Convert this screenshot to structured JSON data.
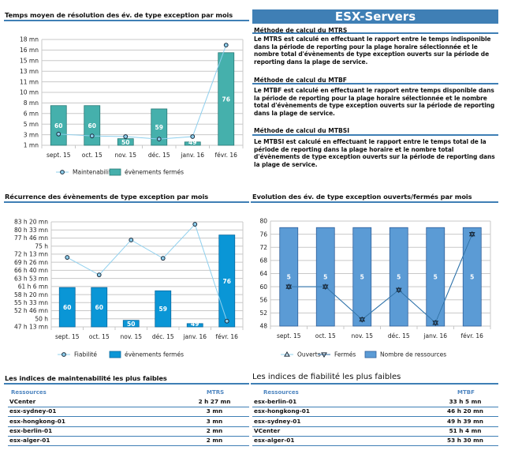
{
  "banner": "ESX-Servers",
  "methods": [
    {
      "title": "Méthode de calcul du MTRS",
      "text": "Le MTRS est calculé en effectuant le rapport entre le temps indisponible dans la période de reporting pour la plage horaire sélectionnée  et le nombre total d'évènements de type exception ouverts sur la période de reporting dans la plage de service."
    },
    {
      "title": "Méthode de calcul du MTBF",
      "text": "Le MTBF est calculé en effectuant le rapport entre temps disponible dans la période de reporting pour la plage horaire sélectionnée et le nombre total d'évènements de type exception ouverts sur la période de reporting dans la plage de service."
    },
    {
      "title": "Méthode de calcul du MTBSI",
      "text": "Le MTBSI est calculé en effectuant le rapport entre le temps total de la période de reporting dans la plage horaire et le nombre total d'évènements de type exception ouverts sur la période de reporting dans la plage de service."
    }
  ],
  "colors": {
    "accent": "#3f7fb5",
    "teal_bar": "#45b0ac",
    "blue_bar": "#0a96d6",
    "resource_bar": "#5b9bd5",
    "light_line": "#8fd0ee",
    "dark_line": "#2e6ea6"
  },
  "chart_data": [
    {
      "type": "bar",
      "title": "Temps moyen de résolution des év. de type exception par mois",
      "categories": [
        "sept. 15",
        "oct. 15",
        "nov. 15",
        "déc. 15",
        "janv. 16",
        "févr. 16"
      ],
      "ylim": [
        1,
        18
      ],
      "yunit": "mn",
      "yticks": [
        "18 mn",
        "16 mn",
        "15 mn",
        "13 mn",
        "11 mn",
        "10 mn",
        "8 mn",
        "6 mn",
        "5 mn",
        "3 mn",
        "1 mn"
      ],
      "grid": true,
      "legend_placement": "bottom",
      "bars": {
        "name": "évènements fermés",
        "values": [
          60,
          60,
          50,
          59,
          49,
          76
        ],
        "ylim": [
          48,
          80
        ],
        "color": "#45b0ac"
      },
      "lines": [
        {
          "name": "Maintenabilité",
          "values": [
            2.8,
            2.5,
            2.4,
            2.0,
            2.4,
            17.1
          ],
          "color": "#8fd0ee",
          "marker": "circle"
        }
      ]
    },
    {
      "type": "bar",
      "title": "Récurrence des évènements de type exception par mois",
      "categories": [
        "sept. 15",
        "oct. 15",
        "nov. 15",
        "déc. 15",
        "janv. 16",
        "févr. 16"
      ],
      "ylim": [
        47.22,
        83.33
      ],
      "yunit": "h",
      "yticks": [
        "83 h 20 mn",
        "80 h 33 mn",
        "77 h 46 mn",
        "75 h",
        "72 h 13 mn",
        "69 h 26 mn",
        "66 h 40 mn",
        "63 h 53 mn",
        "61 h 6 mn",
        "58 h 20 mn",
        "55 h 33 mn",
        "52 h 46 mn",
        "50 h",
        "47 h 13 mn"
      ],
      "grid": true,
      "legend_placement": "bottom",
      "bars": {
        "name": "évènements fermés",
        "values": [
          60,
          60,
          50,
          59,
          49,
          76
        ],
        "ylim": [
          48,
          80
        ],
        "color": "#0a96d6"
      },
      "lines": [
        {
          "name": "Fiabilité",
          "values": [
            71.1,
            65.1,
            77.1,
            70.8,
            82.5,
            49.2
          ],
          "color": "#8fd0ee",
          "marker": "circle"
        }
      ]
    },
    {
      "type": "bar",
      "title": "Evolution des év. de type exception ouverts/fermés par mois",
      "categories": [
        "sept. 15",
        "oct. 15",
        "nov. 15",
        "déc. 15",
        "janv. 16",
        "févr. 16"
      ],
      "ylim": [
        48,
        80
      ],
      "yticks": [
        "80",
        "76",
        "72",
        "68",
        "64",
        "60",
        "56",
        "52",
        "48"
      ],
      "grid": true,
      "legend_placement": "bottom",
      "bars": {
        "name": "Nombre de ressources",
        "values": [
          5,
          5,
          5,
          5,
          5,
          5
        ],
        "ylim": [
          0,
          5.33
        ],
        "color": "#5b9bd5"
      },
      "lines": [
        {
          "name": "Ouverts",
          "values": [
            60,
            60,
            50,
            59,
            49,
            76
          ],
          "color": "#8fd0ee",
          "marker": "triangle-up"
        },
        {
          "name": "Fermés",
          "values": [
            60,
            60,
            50,
            59,
            49,
            76
          ],
          "color": "#2e6ea6",
          "marker": "triangle-down"
        }
      ]
    }
  ],
  "tables": {
    "mtrs": {
      "title": "Les indices de maintenabilité les plus faibles",
      "headers": [
        "Ressources",
        "MTRS"
      ],
      "rows": [
        [
          "VCenter",
          "2 h 27 mn"
        ],
        [
          "esx-sydney-01",
          "3 mn"
        ],
        [
          "esx-hongkong-01",
          "3 mn"
        ],
        [
          "esx-berlin-01",
          "2 mn"
        ],
        [
          "esx-alger-01",
          "2 mn"
        ]
      ]
    },
    "mtbf": {
      "title": "Les indices de fiabilité les plus faibles",
      "headers": [
        "Ressources",
        "MTBF"
      ],
      "rows": [
        [
          "esx-berlin-01",
          "33 h 5 mn"
        ],
        [
          "esx-hongkong-01",
          "46 h 20 mn"
        ],
        [
          "esx-sydney-01",
          "49 h 39 mn"
        ],
        [
          "VCenter",
          "51 h 4 mn"
        ],
        [
          "esx-alger-01",
          "53 h 30 mn"
        ]
      ]
    }
  }
}
